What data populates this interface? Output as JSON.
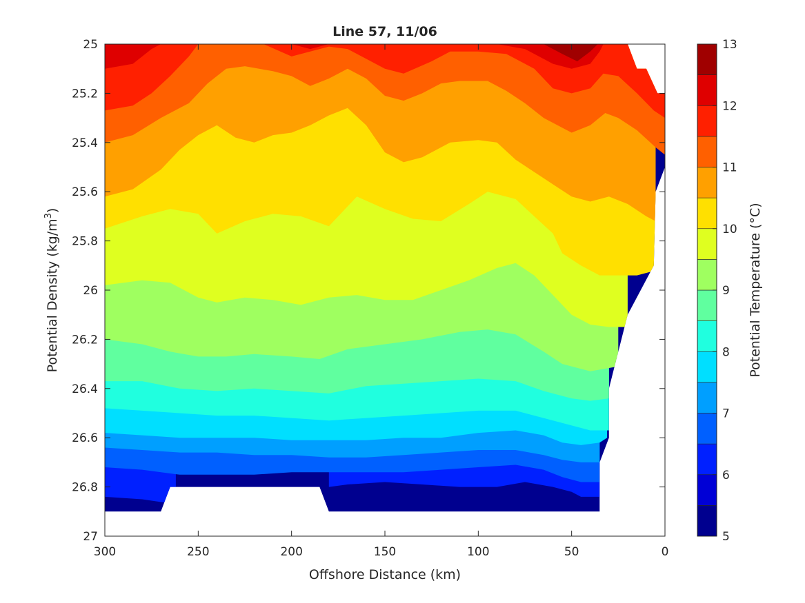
{
  "chart_data": {
    "type": "contour",
    "title": "Line 57, 11/06",
    "xlabel": "Offshore Distance (km)",
    "ylabel": {
      "main": "Potential Density (kg/m",
      "sup": "3",
      "end": ")"
    },
    "colorbar_label": "Potential Temperature (°C)",
    "xlim": [
      300,
      0
    ],
    "ylim": [
      25,
      27
    ],
    "x_reversed": true,
    "y_reversed": true,
    "xticks": [
      300,
      250,
      200,
      150,
      100,
      50,
      0
    ],
    "yticks": [
      25,
      25.2,
      25.4,
      25.6,
      25.8,
      26,
      26.2,
      26.4,
      26.6,
      26.8,
      27
    ],
    "colorbar_ticks": [
      5,
      6,
      7,
      8,
      9,
      10,
      11,
      12,
      13
    ],
    "colorbar_range": [
      5,
      13
    ],
    "levels": [
      5,
      5.5,
      6,
      6.5,
      7,
      7.5,
      8,
      8.5,
      9,
      9.5,
      10,
      10.5,
      11,
      11.5,
      12,
      12.5,
      13
    ],
    "level_colors": [
      "#00008f",
      "#0000d6",
      "#0020ff",
      "#0060ff",
      "#009fff",
      "#00dfff",
      "#20ffdf",
      "#60ff9f",
      "#9fff60",
      "#dfff20",
      "#ffe000",
      "#ffa000",
      "#ff6000",
      "#ff2000",
      "#df0000",
      "#a00000"
    ],
    "grid": false,
    "data_extent": {
      "x": [
        0,
        300
      ],
      "density_bottom": [
        {
          "x": 300,
          "y": 26.9
        },
        {
          "x": 270,
          "y": 26.9
        },
        {
          "x": 265,
          "y": 26.8
        },
        {
          "x": 185,
          "y": 26.8
        },
        {
          "x": 180,
          "y": 26.9
        },
        {
          "x": 35,
          "y": 26.9
        },
        {
          "x": 35,
          "y": 26.7
        },
        {
          "x": 30,
          "y": 26.6
        },
        {
          "x": 30,
          "y": 26.4
        },
        {
          "x": 20,
          "y": 26.1
        },
        {
          "x": 6,
          "y": 25.9
        },
        {
          "x": 5,
          "y": 25.6
        },
        {
          "x": 0,
          "y": 25.5
        }
      ],
      "density_top": [
        {
          "x": 0,
          "y": 25.2
        },
        {
          "x": 4,
          "y": 25.2
        },
        {
          "x": 10,
          "y": 25.1
        },
        {
          "x": 15,
          "y": 25.1
        },
        {
          "x": 20,
          "y": 25
        }
      ]
    },
    "isotherms": [
      {
        "level": 12.5,
        "points": [
          [
            65,
            25
          ],
          [
            55,
            25.04
          ],
          [
            47,
            25.07
          ],
          [
            40,
            25.03
          ],
          [
            36,
            25
          ]
        ]
      },
      {
        "level": 12,
        "points": [
          [
            300,
            25.1
          ],
          [
            285,
            25.08
          ],
          [
            275,
            25.02
          ],
          [
            270,
            25
          ],
          [
            null,
            null
          ],
          [
            230,
            25
          ],
          [
            200,
            25
          ],
          [
            190,
            25.02
          ],
          [
            180,
            25
          ],
          [
            null,
            null
          ],
          [
            130,
            25
          ],
          [
            115,
            25
          ],
          [
            90,
            25
          ],
          [
            75,
            25.02
          ],
          [
            60,
            25.08
          ],
          [
            50,
            25.1
          ],
          [
            40,
            25.08
          ],
          [
            35,
            25.03
          ],
          [
            33,
            25
          ]
        ]
      },
      {
        "level": 11.5,
        "points": [
          [
            300,
            25.27
          ],
          [
            285,
            25.25
          ],
          [
            275,
            25.2
          ],
          [
            265,
            25.13
          ],
          [
            255,
            25.05
          ],
          [
            250,
            25
          ],
          [
            null,
            null
          ],
          [
            215,
            25
          ],
          [
            200,
            25.05
          ],
          [
            190,
            25.03
          ],
          [
            180,
            25.01
          ],
          [
            170,
            25.02
          ],
          [
            160,
            25.06
          ],
          [
            150,
            25.1
          ],
          [
            140,
            25.12
          ],
          [
            125,
            25.07
          ],
          [
            115,
            25.03
          ],
          [
            100,
            25.03
          ],
          [
            85,
            25.04
          ],
          [
            70,
            25.1
          ],
          [
            60,
            25.18
          ],
          [
            50,
            25.2
          ],
          [
            40,
            25.18
          ],
          [
            33,
            25.12
          ],
          [
            25,
            25.13
          ],
          [
            15,
            25.2
          ],
          [
            6,
            25.27
          ],
          [
            0,
            25.3
          ]
        ]
      },
      {
        "level": 11,
        "points": [
          [
            300,
            25.4
          ],
          [
            285,
            25.37
          ],
          [
            270,
            25.3
          ],
          [
            255,
            25.24
          ],
          [
            245,
            25.16
          ],
          [
            235,
            25.1
          ],
          [
            225,
            25.09
          ],
          [
            210,
            25.11
          ],
          [
            200,
            25.13
          ],
          [
            190,
            25.17
          ],
          [
            180,
            25.14
          ],
          [
            170,
            25.1
          ],
          [
            160,
            25.14
          ],
          [
            150,
            25.21
          ],
          [
            140,
            25.23
          ],
          [
            130,
            25.2
          ],
          [
            120,
            25.16
          ],
          [
            110,
            25.15
          ],
          [
            95,
            25.15
          ],
          [
            85,
            25.19
          ],
          [
            75,
            25.24
          ],
          [
            65,
            25.3
          ],
          [
            55,
            25.34
          ],
          [
            50,
            25.36
          ],
          [
            40,
            25.33
          ],
          [
            32,
            25.28
          ],
          [
            25,
            25.3
          ],
          [
            15,
            25.35
          ],
          [
            5,
            25.42
          ],
          [
            0,
            25.45
          ]
        ]
      },
      {
        "level": 10.5,
        "points": [
          [
            300,
            25.62
          ],
          [
            285,
            25.59
          ],
          [
            270,
            25.51
          ],
          [
            260,
            25.43
          ],
          [
            250,
            25.37
          ],
          [
            240,
            25.33
          ],
          [
            230,
            25.38
          ],
          [
            220,
            25.4
          ],
          [
            210,
            25.37
          ],
          [
            200,
            25.36
          ],
          [
            190,
            25.33
          ],
          [
            180,
            25.29
          ],
          [
            170,
            25.26
          ],
          [
            160,
            25.33
          ],
          [
            150,
            25.44
          ],
          [
            140,
            25.48
          ],
          [
            130,
            25.46
          ],
          [
            115,
            25.4
          ],
          [
            100,
            25.39
          ],
          [
            90,
            25.4
          ],
          [
            80,
            25.47
          ],
          [
            70,
            25.52
          ],
          [
            60,
            25.57
          ],
          [
            50,
            25.62
          ],
          [
            40,
            25.64
          ],
          [
            30,
            25.62
          ],
          [
            20,
            25.65
          ],
          [
            10,
            25.7
          ],
          [
            5,
            25.72
          ]
        ]
      },
      {
        "level": 10,
        "points": [
          [
            300,
            25.75
          ],
          [
            280,
            25.7
          ],
          [
            265,
            25.67
          ],
          [
            250,
            25.69
          ],
          [
            240,
            25.77
          ],
          [
            225,
            25.72
          ],
          [
            210,
            25.69
          ],
          [
            195,
            25.7
          ],
          [
            180,
            25.74
          ],
          [
            165,
            25.62
          ],
          [
            150,
            25.67
          ],
          [
            135,
            25.71
          ],
          [
            120,
            25.72
          ],
          [
            105,
            25.65
          ],
          [
            95,
            25.6
          ],
          [
            80,
            25.63
          ],
          [
            70,
            25.7
          ],
          [
            60,
            25.77
          ],
          [
            55,
            25.85
          ],
          [
            45,
            25.9
          ],
          [
            35,
            25.94
          ],
          [
            25,
            25.94
          ],
          [
            15,
            25.94
          ],
          [
            5,
            25.92
          ]
        ]
      },
      {
        "level": 9.5,
        "points": [
          [
            300,
            25.98
          ],
          [
            280,
            25.96
          ],
          [
            265,
            25.97
          ],
          [
            250,
            26.03
          ],
          [
            240,
            26.05
          ],
          [
            225,
            26.03
          ],
          [
            210,
            26.04
          ],
          [
            195,
            26.06
          ],
          [
            180,
            26.03
          ],
          [
            165,
            26.02
          ],
          [
            150,
            26.04
          ],
          [
            135,
            26.04
          ],
          [
            120,
            26.0
          ],
          [
            105,
            25.96
          ],
          [
            90,
            25.91
          ],
          [
            80,
            25.89
          ],
          [
            70,
            25.94
          ],
          [
            60,
            26.02
          ],
          [
            50,
            26.1
          ],
          [
            40,
            26.14
          ],
          [
            30,
            26.15
          ],
          [
            20,
            26.15
          ]
        ]
      },
      {
        "level": 9,
        "points": [
          [
            300,
            26.2
          ],
          [
            280,
            26.22
          ],
          [
            265,
            26.25
          ],
          [
            250,
            26.27
          ],
          [
            235,
            26.27
          ],
          [
            220,
            26.26
          ],
          [
            200,
            26.27
          ],
          [
            185,
            26.28
          ],
          [
            170,
            26.24
          ],
          [
            150,
            26.22
          ],
          [
            130,
            26.2
          ],
          [
            110,
            26.17
          ],
          [
            95,
            26.16
          ],
          [
            80,
            26.18
          ],
          [
            65,
            26.25
          ],
          [
            55,
            26.3
          ],
          [
            40,
            26.33
          ],
          [
            25,
            26.31
          ]
        ]
      },
      {
        "level": 8.5,
        "points": [
          [
            300,
            26.37
          ],
          [
            280,
            26.37
          ],
          [
            260,
            26.4
          ],
          [
            240,
            26.41
          ],
          [
            220,
            26.4
          ],
          [
            200,
            26.41
          ],
          [
            180,
            26.42
          ],
          [
            160,
            26.39
          ],
          [
            140,
            26.38
          ],
          [
            120,
            26.37
          ],
          [
            100,
            26.36
          ],
          [
            80,
            26.37
          ],
          [
            65,
            26.41
          ],
          [
            50,
            26.44
          ],
          [
            40,
            26.45
          ],
          [
            30,
            26.44
          ]
        ]
      },
      {
        "level": 8,
        "points": [
          [
            300,
            26.48
          ],
          [
            280,
            26.49
          ],
          [
            260,
            26.5
          ],
          [
            240,
            26.51
          ],
          [
            220,
            26.51
          ],
          [
            200,
            26.52
          ],
          [
            180,
            26.53
          ],
          [
            160,
            26.52
          ],
          [
            140,
            26.51
          ],
          [
            120,
            26.5
          ],
          [
            100,
            26.49
          ],
          [
            80,
            26.49
          ],
          [
            65,
            26.52
          ],
          [
            50,
            26.55
          ],
          [
            40,
            26.57
          ],
          [
            30,
            26.57
          ]
        ]
      },
      {
        "level": 7.5,
        "points": [
          [
            300,
            26.58
          ],
          [
            280,
            26.59
          ],
          [
            260,
            26.6
          ],
          [
            240,
            26.6
          ],
          [
            220,
            26.6
          ],
          [
            200,
            26.61
          ],
          [
            180,
            26.61
          ],
          [
            160,
            26.61
          ],
          [
            140,
            26.6
          ],
          [
            120,
            26.6
          ],
          [
            100,
            26.58
          ],
          [
            80,
            26.57
          ],
          [
            65,
            26.59
          ],
          [
            55,
            26.62
          ],
          [
            45,
            26.63
          ],
          [
            35,
            26.62
          ],
          [
            31,
            26.6
          ]
        ]
      },
      {
        "level": 7,
        "points": [
          [
            300,
            26.64
          ],
          [
            280,
            26.65
          ],
          [
            260,
            26.66
          ],
          [
            240,
            26.66
          ],
          [
            220,
            26.67
          ],
          [
            200,
            26.67
          ],
          [
            180,
            26.68
          ],
          [
            160,
            26.68
          ],
          [
            140,
            26.67
          ],
          [
            120,
            26.66
          ],
          [
            100,
            26.65
          ],
          [
            80,
            26.65
          ],
          [
            65,
            26.67
          ],
          [
            55,
            26.69
          ],
          [
            45,
            26.7
          ],
          [
            35,
            26.7
          ]
        ]
      },
      {
        "level": 6.5,
        "points": [
          [
            300,
            26.72
          ],
          [
            280,
            26.73
          ],
          [
            260,
            26.75
          ],
          [
            240,
            26.75
          ],
          [
            220,
            26.75
          ],
          [
            200,
            26.74
          ],
          [
            180,
            26.74
          ],
          [
            160,
            26.74
          ],
          [
            140,
            26.74
          ],
          [
            120,
            26.73
          ],
          [
            100,
            26.72
          ],
          [
            80,
            26.71
          ],
          [
            65,
            26.73
          ],
          [
            55,
            26.76
          ],
          [
            45,
            26.78
          ],
          [
            35,
            26.78
          ]
        ]
      },
      {
        "level": 6,
        "points": [
          [
            300,
            26.84
          ],
          [
            280,
            26.85
          ],
          [
            262,
            26.87
          ],
          [
            null,
            null
          ],
          [
            180,
            26.8
          ],
          [
            170,
            26.79
          ],
          [
            150,
            26.78
          ],
          [
            130,
            26.79
          ],
          [
            110,
            26.8
          ],
          [
            90,
            26.8
          ],
          [
            75,
            26.78
          ],
          [
            60,
            26.8
          ],
          [
            50,
            26.82
          ],
          [
            45,
            26.84
          ],
          [
            35,
            26.84
          ]
        ]
      }
    ]
  }
}
